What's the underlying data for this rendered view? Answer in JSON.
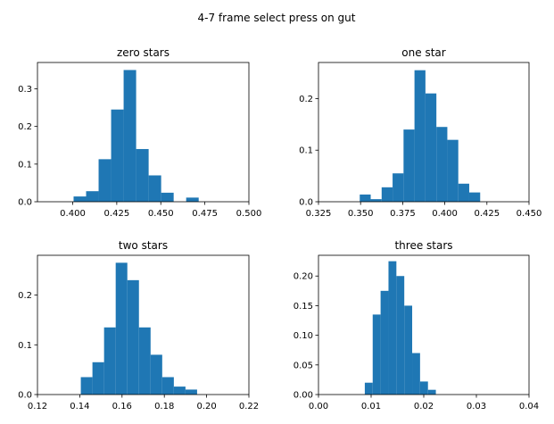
{
  "figure": {
    "title": "4-7 frame select press on gut",
    "bar_color": "#1f77b4"
  },
  "chart_data": [
    {
      "type": "bar",
      "title": "zero stars",
      "xlim": [
        0.38,
        0.5
      ],
      "ylim": [
        0,
        0.37
      ],
      "xticks": [
        0.4,
        0.425,
        0.45,
        0.475,
        0.5
      ],
      "xtick_labels": [
        "0.400",
        "0.425",
        "0.450",
        "0.475",
        "0.500"
      ],
      "yticks": [
        0,
        0.1,
        0.2,
        0.3
      ],
      "ytick_labels": [
        "0.0",
        "0.1",
        "0.2",
        "0.3"
      ],
      "bins": [
        {
          "x0": 0.4005,
          "x1": 0.4076,
          "value": 0.014
        },
        {
          "x0": 0.4076,
          "x1": 0.4147,
          "value": 0.028
        },
        {
          "x0": 0.4147,
          "x1": 0.4218,
          "value": 0.113
        },
        {
          "x0": 0.4218,
          "x1": 0.4289,
          "value": 0.245
        },
        {
          "x0": 0.4289,
          "x1": 0.436,
          "value": 0.35
        },
        {
          "x0": 0.436,
          "x1": 0.4431,
          "value": 0.14
        },
        {
          "x0": 0.4431,
          "x1": 0.4502,
          "value": 0.07
        },
        {
          "x0": 0.4502,
          "x1": 0.4573,
          "value": 0.024
        },
        {
          "x0": 0.4573,
          "x1": 0.4644,
          "value": 0.0
        },
        {
          "x0": 0.4644,
          "x1": 0.4715,
          "value": 0.011
        }
      ]
    },
    {
      "type": "bar",
      "title": "one star",
      "xlim": [
        0.325,
        0.45
      ],
      "ylim": [
        0,
        0.27
      ],
      "xticks": [
        0.325,
        0.35,
        0.375,
        0.4,
        0.425,
        0.45
      ],
      "xtick_labels": [
        "0.325",
        "0.350",
        "0.375",
        "0.400",
        "0.425",
        "0.450"
      ],
      "yticks": [
        0,
        0.1,
        0.2
      ],
      "ytick_labels": [
        "0.0",
        "0.1",
        "0.2"
      ],
      "bins": [
        {
          "x0": 0.3495,
          "x1": 0.356,
          "value": 0.014
        },
        {
          "x0": 0.356,
          "x1": 0.3625,
          "value": 0.005
        },
        {
          "x0": 0.3625,
          "x1": 0.369,
          "value": 0.028
        },
        {
          "x0": 0.369,
          "x1": 0.3755,
          "value": 0.055
        },
        {
          "x0": 0.3755,
          "x1": 0.382,
          "value": 0.14
        },
        {
          "x0": 0.382,
          "x1": 0.3885,
          "value": 0.255
        },
        {
          "x0": 0.3885,
          "x1": 0.395,
          "value": 0.21
        },
        {
          "x0": 0.395,
          "x1": 0.4015,
          "value": 0.145
        },
        {
          "x0": 0.4015,
          "x1": 0.408,
          "value": 0.12
        },
        {
          "x0": 0.408,
          "x1": 0.4145,
          "value": 0.035
        },
        {
          "x0": 0.4145,
          "x1": 0.421,
          "value": 0.018
        }
      ]
    },
    {
      "type": "bar",
      "title": "two stars",
      "xlim": [
        0.12,
        0.22
      ],
      "ylim": [
        0,
        0.28
      ],
      "xticks": [
        0.12,
        0.14,
        0.16,
        0.18,
        0.2,
        0.22
      ],
      "xtick_labels": [
        "0.12",
        "0.14",
        "0.16",
        "0.18",
        "0.20",
        "0.22"
      ],
      "yticks": [
        0,
        0.1,
        0.2
      ],
      "ytick_labels": [
        "0.0",
        "0.1",
        "0.2"
      ],
      "bins": [
        {
          "x0": 0.1405,
          "x1": 0.146,
          "value": 0.035
        },
        {
          "x0": 0.146,
          "x1": 0.1515,
          "value": 0.065
        },
        {
          "x0": 0.1515,
          "x1": 0.157,
          "value": 0.135
        },
        {
          "x0": 0.157,
          "x1": 0.1625,
          "value": 0.265
        },
        {
          "x0": 0.1625,
          "x1": 0.168,
          "value": 0.23
        },
        {
          "x0": 0.168,
          "x1": 0.1735,
          "value": 0.135
        },
        {
          "x0": 0.1735,
          "x1": 0.179,
          "value": 0.08
        },
        {
          "x0": 0.179,
          "x1": 0.1845,
          "value": 0.035
        },
        {
          "x0": 0.1845,
          "x1": 0.19,
          "value": 0.016
        },
        {
          "x0": 0.19,
          "x1": 0.1955,
          "value": 0.01
        }
      ]
    },
    {
      "type": "bar",
      "title": "three stars",
      "xlim": [
        0,
        0.04
      ],
      "ylim": [
        0,
        0.235
      ],
      "xticks": [
        0,
        0.01,
        0.02,
        0.03,
        0.04
      ],
      "xtick_labels": [
        "0.00",
        "0.01",
        "0.02",
        "0.03",
        "0.04"
      ],
      "yticks": [
        0,
        0.05,
        0.1,
        0.15,
        0.2
      ],
      "ytick_labels": [
        "0.00",
        "0.05",
        "0.10",
        "0.15",
        "0.20"
      ],
      "bins": [
        {
          "x0": 0.0088,
          "x1": 0.0103,
          "value": 0.02
        },
        {
          "x0": 0.0103,
          "x1": 0.0118,
          "value": 0.135
        },
        {
          "x0": 0.0118,
          "x1": 0.0133,
          "value": 0.175
        },
        {
          "x0": 0.0133,
          "x1": 0.0148,
          "value": 0.225
        },
        {
          "x0": 0.0148,
          "x1": 0.0163,
          "value": 0.2
        },
        {
          "x0": 0.0163,
          "x1": 0.0178,
          "value": 0.15
        },
        {
          "x0": 0.0178,
          "x1": 0.0193,
          "value": 0.07
        },
        {
          "x0": 0.0193,
          "x1": 0.0208,
          "value": 0.022
        },
        {
          "x0": 0.0208,
          "x1": 0.0223,
          "value": 0.008
        }
      ]
    }
  ]
}
